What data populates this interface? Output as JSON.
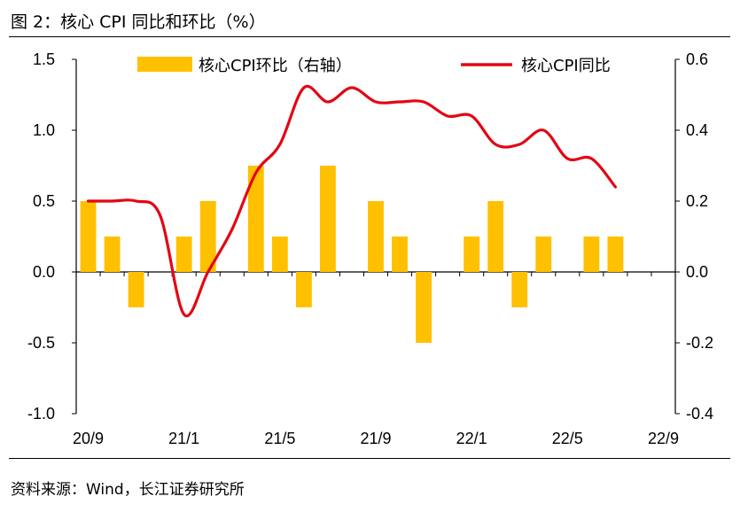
{
  "title": "图 2：核心 CPI 同比和环比（%）",
  "source": "资料来源：Wind，长江证券研究所",
  "colors": {
    "bar": "#FFC000",
    "line": "#E30613",
    "axis": "#000000"
  },
  "chart_data": {
    "type": "bar+line",
    "title": "",
    "categories": [
      "20/9",
      "20/10",
      "20/11",
      "20/12",
      "21/1",
      "21/2",
      "21/3",
      "21/4",
      "21/5",
      "21/6",
      "21/7",
      "21/8",
      "21/9",
      "21/10",
      "21/11",
      "21/12",
      "22/1",
      "22/2",
      "22/3",
      "22/4",
      "22/5",
      "22/6",
      "22/7",
      "22/8",
      "22/9"
    ],
    "x_tick_labels": [
      "20/9",
      "21/1",
      "21/5",
      "21/9",
      "22/1",
      "22/5",
      "22/9"
    ],
    "left_axis": {
      "ylim": [
        -1.0,
        1.5
      ],
      "ticks": [
        "1.5",
        "1.0",
        "0.5",
        "0.0",
        "-0.5",
        "-1.0"
      ],
      "tick_values": [
        1.5,
        1.0,
        0.5,
        0.0,
        -0.5,
        -1.0
      ]
    },
    "right_axis": {
      "ylim": [
        -0.4,
        0.6
      ],
      "ticks": [
        "0.6",
        "0.4",
        "0.2",
        "0.0",
        "-0.2",
        "-0.4"
      ],
      "tick_values": [
        0.6,
        0.4,
        0.2,
        0.0,
        -0.2,
        -0.4
      ]
    },
    "legend": {
      "position": "top",
      "bar_label": "核心CPI环比（右轴）",
      "line_label": "核心CPI同比"
    },
    "series": [
      {
        "name": "核心CPI环比（右轴）",
        "type": "bar",
        "axis": "right",
        "values": [
          0.2,
          0.1,
          -0.1,
          null,
          0.1,
          0.2,
          null,
          0.3,
          0.1,
          -0.1,
          0.3,
          null,
          0.2,
          0.1,
          -0.2,
          null,
          0.1,
          0.2,
          -0.1,
          0.1,
          null,
          0.1,
          0.1,
          null,
          null
        ]
      },
      {
        "name": "核心CPI同比",
        "type": "line",
        "axis": "left",
        "values": [
          0.5,
          0.5,
          0.5,
          0.4,
          -0.3,
          0.0,
          0.3,
          0.7,
          0.9,
          1.3,
          1.2,
          1.3,
          1.2,
          1.2,
          1.2,
          1.1,
          1.1,
          0.9,
          0.9,
          1.0,
          0.8,
          0.8,
          0.6,
          null,
          null
        ]
      }
    ]
  }
}
